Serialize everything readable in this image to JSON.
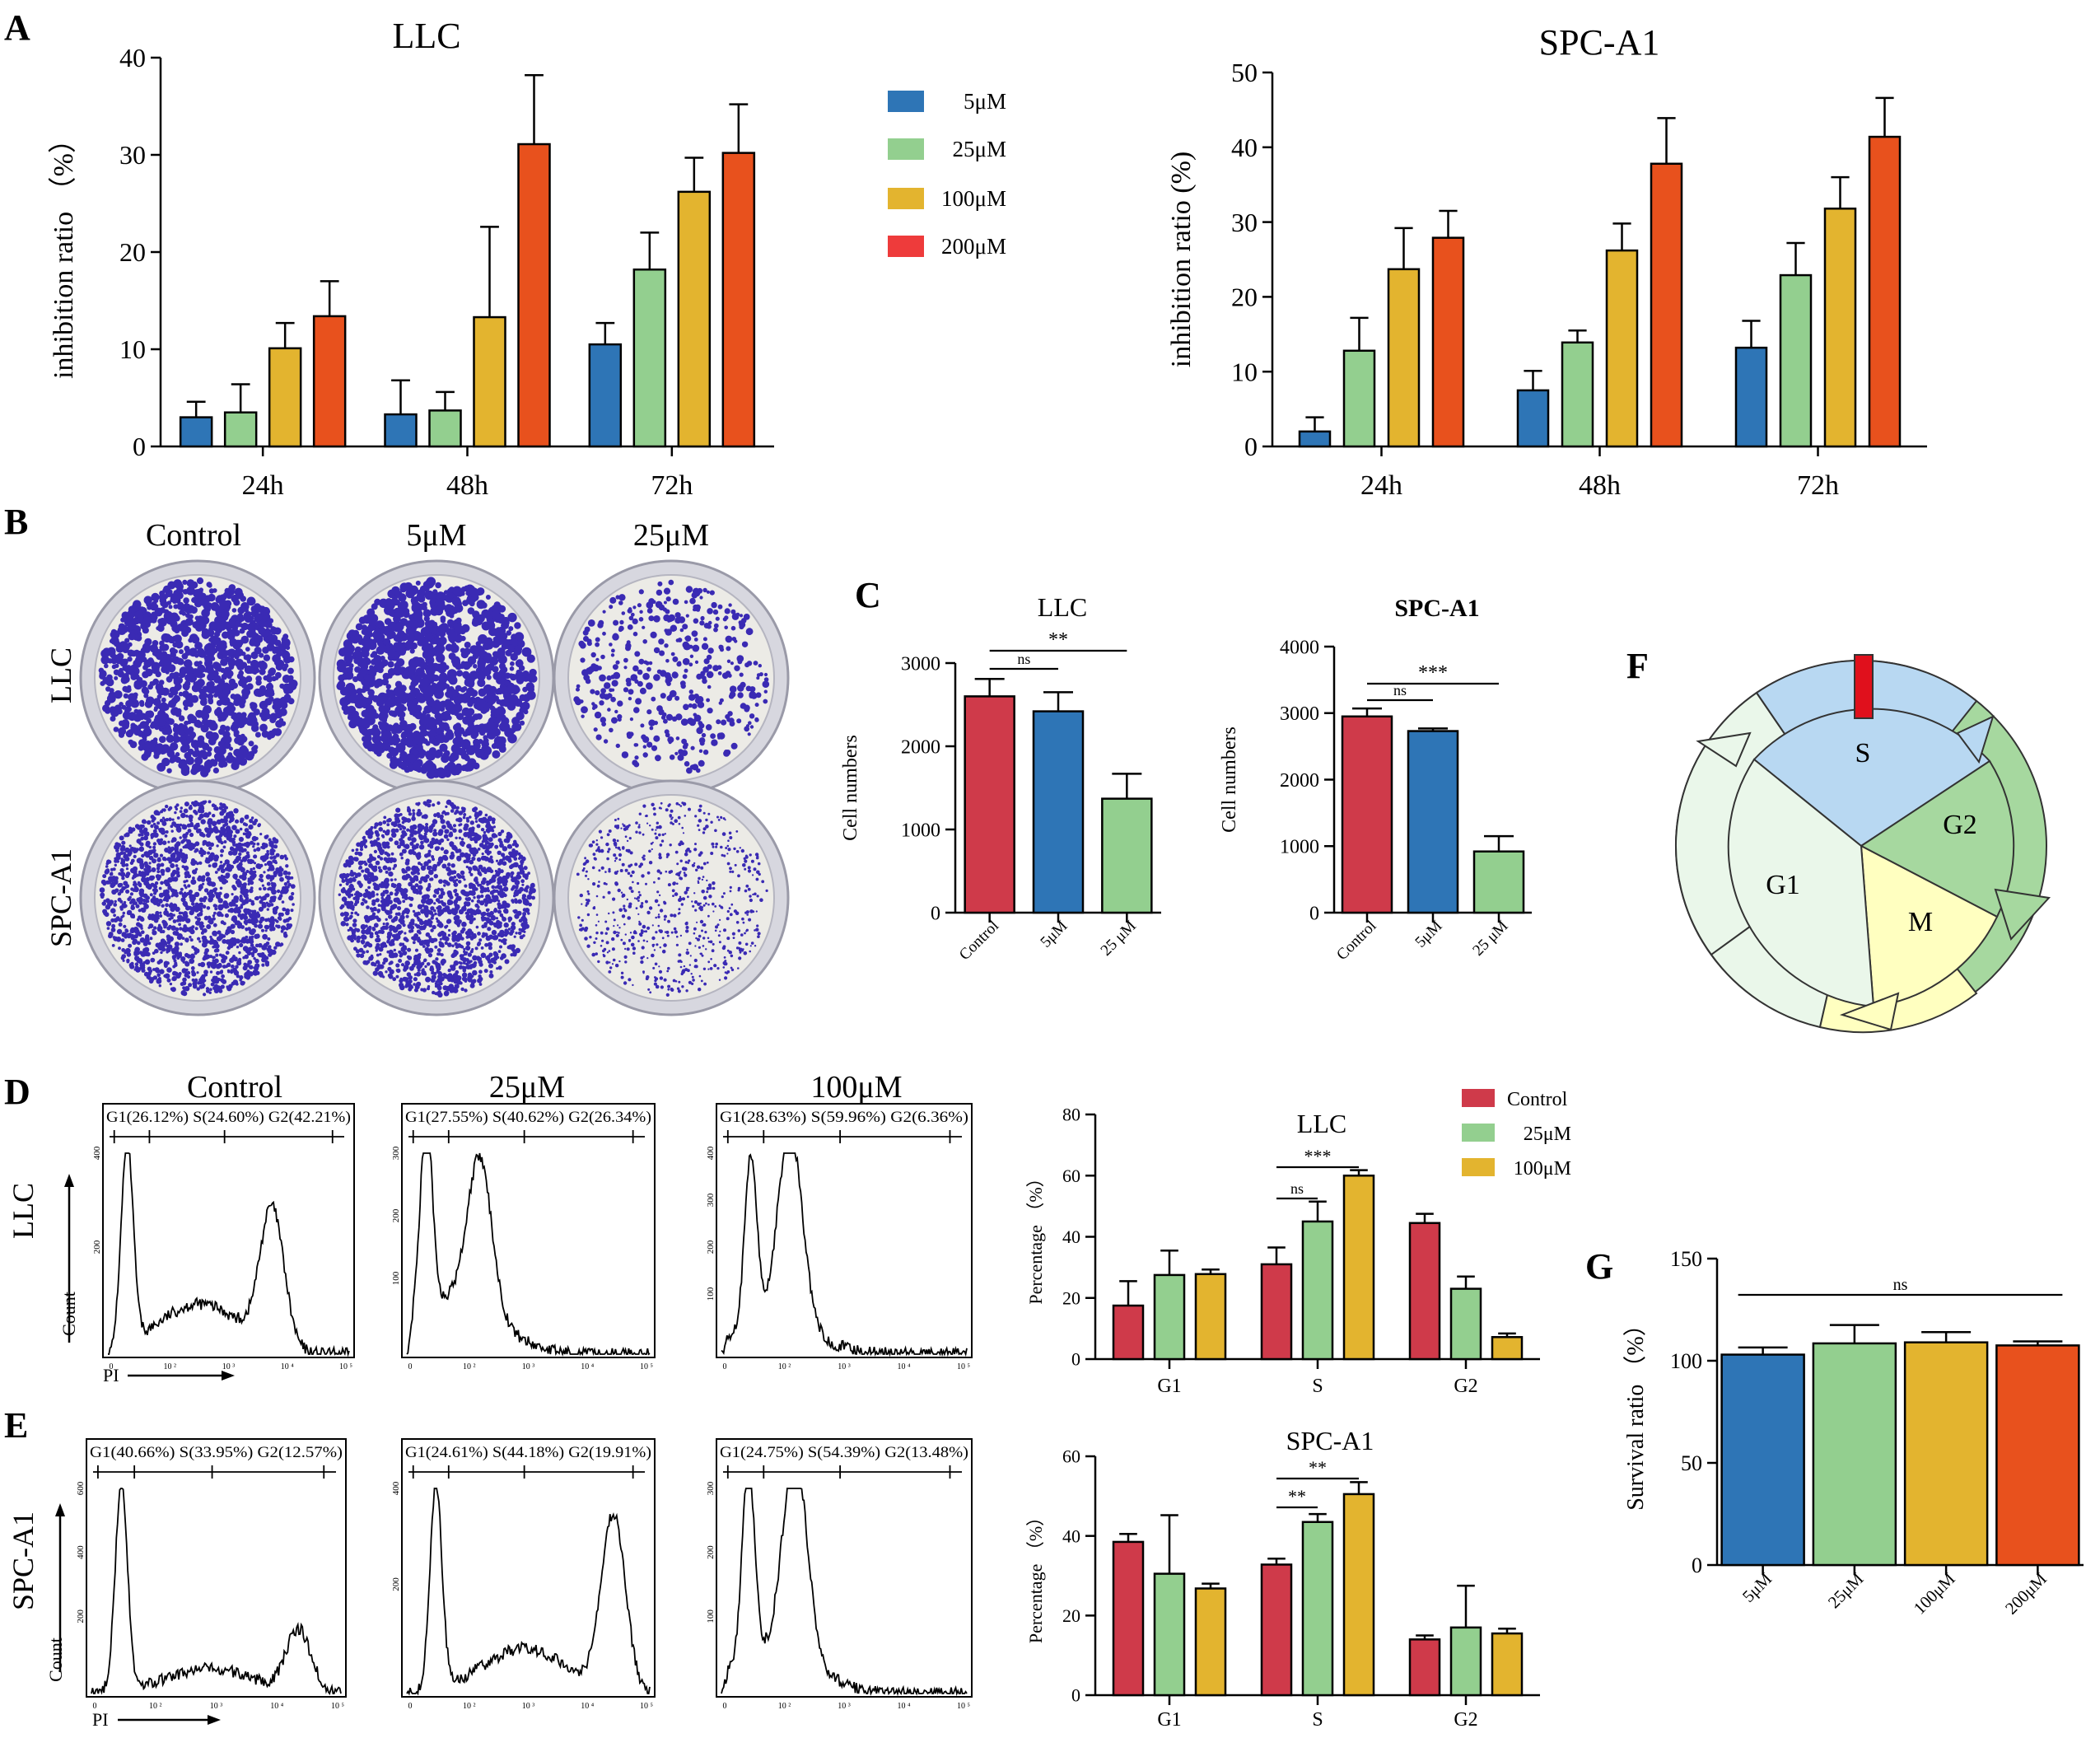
{
  "colors": {
    "blue": "#2e75b6",
    "green": "#93cf8f",
    "yellow": "#e3b42f",
    "orange": "#e8511d",
    "red": "#cf3a4a",
    "red_legend": "#ee3b3b",
    "dish_rim": "#d7d7df",
    "dish_bg": "#ecebe6",
    "colony": "#3a2ab4",
    "cycle_S": "#b8d8f2",
    "cycle_G2": "#a6d89f",
    "cycle_M": "#ffffc0",
    "cycle_G1": "#eaf7ea",
    "cycle_marker": "#e0101c"
  },
  "panels": {
    "A": "A",
    "B": "B",
    "C": "C",
    "D": "D",
    "E": "E",
    "F": "F",
    "G": "G"
  },
  "legend_A": {
    "items": [
      "5μM",
      "25μM",
      "100μM",
      "200μM"
    ]
  },
  "legend_D": {
    "items": [
      "Control",
      "25μM",
      "100μM"
    ]
  },
  "colony_assay": {
    "columns": [
      "Control",
      "5μM",
      "25μM"
    ],
    "rows": [
      "LLC",
      "SPC-A1"
    ]
  },
  "cell_cycle_diagram": {
    "phases": [
      "S",
      "G2",
      "M",
      "G1"
    ]
  },
  "flow_cytometry": {
    "conditions_header": [
      "Control",
      "25μM",
      "100μM"
    ],
    "row_labels": [
      "LLC",
      "SPC-A1"
    ],
    "count_label": "Count",
    "pi_label": "PI",
    "gates": [
      [
        "G1(26.12%) S(24.60%) G2(42.21%)",
        "G1(27.55%) S(40.62%) G2(26.34%)",
        "G1(28.63%) S(59.96%) G2(6.36%)"
      ],
      [
        "G1(40.66%) S(33.95%)  G2(12.57%)",
        "G1(24.61%)  S(44.18%) G2(19.91%)",
        "G1(24.75%) S(54.39%) G2(13.48%)"
      ]
    ],
    "y_ticks": [
      [
        "400",
        "200"
      ],
      [
        "300",
        "200",
        "100"
      ],
      [
        "400",
        "300",
        "200",
        "100"
      ],
      [
        "600",
        "400",
        "200"
      ],
      [
        "400",
        "200"
      ],
      [
        "300",
        "200",
        "100"
      ]
    ],
    "x_ticks": [
      "0",
      "10 ²",
      "10 ³",
      "10 ⁴",
      "10 ⁵"
    ]
  },
  "chart_data": [
    {
      "id": "A-left",
      "type": "bar",
      "title": "LLC",
      "xlabel": "",
      "ylabel": "inhibition ratio （%）",
      "categories": [
        "24h",
        "48h",
        "72h"
      ],
      "ylim": [
        0,
        40
      ],
      "yticks": [
        0,
        10,
        20,
        30,
        40
      ],
      "series": [
        {
          "name": "5μM",
          "values": [
            3.0,
            3.3,
            10.5
          ],
          "errors": [
            1.6,
            3.5,
            2.2
          ]
        },
        {
          "name": "25μM",
          "values": [
            3.5,
            3.7,
            18.2
          ],
          "errors": [
            2.9,
            1.9,
            3.8
          ]
        },
        {
          "name": "100μM",
          "values": [
            10.1,
            13.3,
            26.2
          ],
          "errors": [
            2.6,
            9.3,
            3.5
          ]
        },
        {
          "name": "200μM",
          "values": [
            13.4,
            31.1,
            30.2
          ],
          "errors": [
            3.6,
            7.1,
            5.0
          ]
        }
      ]
    },
    {
      "id": "A-right",
      "type": "bar",
      "title": "SPC-A1",
      "xlabel": "",
      "ylabel": "inhibition ratio (%)",
      "categories": [
        "24h",
        "48h",
        "72h"
      ],
      "ylim": [
        0,
        50
      ],
      "yticks": [
        0,
        10,
        20,
        30,
        40,
        50
      ],
      "series": [
        {
          "name": "5μM",
          "values": [
            2.0,
            7.5,
            13.2
          ],
          "errors": [
            1.9,
            2.6,
            3.6
          ]
        },
        {
          "name": "25μM",
          "values": [
            12.8,
            13.9,
            22.9
          ],
          "errors": [
            4.4,
            1.6,
            4.3
          ]
        },
        {
          "name": "100μM",
          "values": [
            23.7,
            26.2,
            31.8
          ],
          "errors": [
            5.5,
            3.6,
            4.2
          ]
        },
        {
          "name": "200μM",
          "values": [
            27.9,
            37.8,
            41.4
          ],
          "errors": [
            3.6,
            6.1,
            5.2
          ]
        }
      ]
    },
    {
      "id": "C-left",
      "type": "bar",
      "title": "LLC",
      "xlabel": "",
      "ylabel": "Cell numbers",
      "categories": [
        "Control",
        "5μM",
        "25 μM"
      ],
      "ylim": [
        0,
        3000
      ],
      "yticks": [
        0,
        1000,
        2000,
        3000
      ],
      "series": [
        {
          "name": "Cell numbers",
          "values": [
            2600,
            2420,
            1370
          ],
          "errors": [
            210,
            230,
            300
          ]
        }
      ],
      "annotations": [
        {
          "from": 0,
          "to": 1,
          "label": "ns"
        },
        {
          "from": 0,
          "to": 2,
          "label": "**"
        }
      ]
    },
    {
      "id": "C-right",
      "type": "bar",
      "title": "SPC-A1",
      "xlabel": "",
      "ylabel": "Cell numbers",
      "categories": [
        "Control",
        "5μM",
        "25 μM"
      ],
      "ylim": [
        0,
        4000
      ],
      "yticks": [
        0,
        1000,
        2000,
        3000,
        4000
      ],
      "series": [
        {
          "name": "Cell numbers",
          "values": [
            2950,
            2730,
            920
          ],
          "errors": [
            120,
            40,
            230
          ]
        }
      ],
      "annotations": [
        {
          "from": 0,
          "to": 1,
          "label": "ns"
        },
        {
          "from": 0,
          "to": 2,
          "label": "***"
        }
      ]
    },
    {
      "id": "D-bar",
      "type": "bar",
      "title": "LLC",
      "xlabel": "",
      "ylabel": "Percentage （%）",
      "categories": [
        "G1",
        "S",
        "G2"
      ],
      "ylim": [
        0,
        80
      ],
      "yticks": [
        0,
        20,
        40,
        60,
        80
      ],
      "series": [
        {
          "name": "Control",
          "values": [
            17.5,
            31.0,
            44.5
          ],
          "errors": [
            8.0,
            5.5,
            3.0
          ]
        },
        {
          "name": "25μM",
          "values": [
            27.5,
            45.0,
            23.0
          ],
          "errors": [
            8.0,
            6.5,
            4.0
          ]
        },
        {
          "name": "100μM",
          "values": [
            27.8,
            60.0,
            7.2
          ],
          "errors": [
            1.5,
            1.8,
            1.2
          ]
        }
      ],
      "annotations": [
        {
          "label": "ns"
        },
        {
          "label": "***"
        }
      ]
    },
    {
      "id": "E-bar",
      "type": "bar",
      "title": "SPC-A1",
      "xlabel": "",
      "ylabel": "Percentage （%）",
      "categories": [
        "G1",
        "S",
        "G2"
      ],
      "ylim": [
        0,
        60
      ],
      "yticks": [
        0,
        20,
        40,
        60
      ],
      "series": [
        {
          "name": "Control",
          "values": [
            38.5,
            32.8,
            14.0
          ],
          "errors": [
            2.0,
            1.5,
            1.0
          ]
        },
        {
          "name": "25μM",
          "values": [
            30.5,
            43.5,
            17.0
          ],
          "errors": [
            14.7,
            2.0,
            10.5
          ]
        },
        {
          "name": "100μM",
          "values": [
            26.8,
            50.5,
            15.5
          ],
          "errors": [
            1.2,
            3.0,
            1.2
          ]
        }
      ],
      "annotations": [
        {
          "label": "**"
        },
        {
          "label": "**"
        }
      ]
    },
    {
      "id": "G",
      "type": "bar",
      "title": "",
      "xlabel": "",
      "ylabel": "Survival ratio （%）",
      "categories": [
        "5μM",
        "25μM",
        "100μM",
        "200μM"
      ],
      "ylim": [
        0,
        150
      ],
      "yticks": [
        0,
        50,
        100,
        150
      ],
      "series": [
        {
          "name": "Survival ratio",
          "values": [
            103,
            108.5,
            109,
            107.5
          ],
          "errors": [
            3.5,
            9.0,
            5.0,
            2.0
          ]
        }
      ],
      "annotations": [
        {
          "from": 0,
          "to": 3,
          "label": "ns"
        }
      ]
    }
  ]
}
